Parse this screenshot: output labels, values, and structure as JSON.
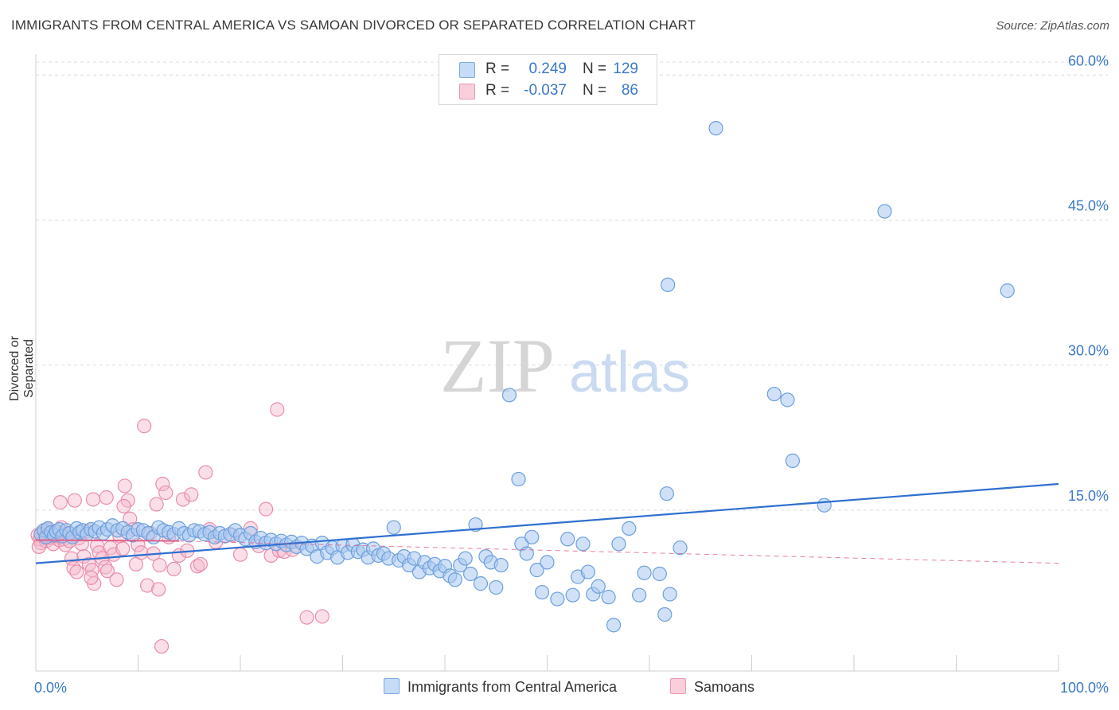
{
  "title": "IMMIGRANTS FROM CENTRAL AMERICA VS SAMOAN DIVORCED OR SEPARATED CORRELATION CHART",
  "source": "Source: ZipAtlas.com",
  "watermark": {
    "zip": "ZIP",
    "atlas": "atlas"
  },
  "legend": {
    "r_label": "R =",
    "n_label": "N =",
    "rows": [
      {
        "r": "0.249",
        "n": "129",
        "color": "#a9c8f0"
      },
      {
        "r": "-0.037",
        "n": "86",
        "color": "#f5b9cc"
      }
    ]
  },
  "bottom_legend": [
    {
      "label": "Immigrants from Central America",
      "color": "#a9c8f0"
    },
    {
      "label": "Samoans",
      "color": "#f5b9cc"
    }
  ],
  "colors": {
    "blue_line": "#2f6fd0",
    "pink_line": "#e0608a",
    "axis_text": "#3a78c8",
    "grid": "#dcdcdc"
  },
  "chart_data": {
    "type": "scatter",
    "ylabel": "Divorced or Separated",
    "xlim": [
      0,
      100
    ],
    "ylim": [
      0,
      62
    ],
    "y_ticks": [
      {
        "v": 15,
        "label": "15.0%"
      },
      {
        "v": 30,
        "label": "30.0%"
      },
      {
        "v": 45,
        "label": "45.0%"
      },
      {
        "v": 60,
        "label": "60.0%"
      }
    ],
    "x_tick_labels": [
      {
        "v": 0,
        "label": "0.0%"
      },
      {
        "v": 100,
        "label": "100.0%"
      }
    ],
    "x_minor_ticks": [
      0,
      10,
      20,
      30,
      40,
      50,
      60,
      70,
      80,
      90,
      100
    ],
    "series": [
      {
        "name": "Immigrants from Central America",
        "color": "#a9c8f0",
        "trend": {
          "x": [
            0,
            100
          ],
          "y": [
            9.5,
            17.7
          ]
        },
        "points": [
          [
            0.5,
            12.5
          ],
          [
            0.8,
            12.9
          ],
          [
            1.0,
            12.2
          ],
          [
            1.2,
            13.1
          ],
          [
            1.5,
            12.7
          ],
          [
            1.8,
            12.4
          ],
          [
            2.0,
            12.8
          ],
          [
            2.3,
            13.0
          ],
          [
            2.6,
            12.3
          ],
          [
            3.0,
            12.9
          ],
          [
            3.3,
            12.6
          ],
          [
            3.6,
            12.2
          ],
          [
            4.0,
            13.1
          ],
          [
            4.3,
            12.7
          ],
          [
            4.6,
            12.9
          ],
          [
            5.0,
            12.5
          ],
          [
            5.4,
            13.0
          ],
          [
            5.8,
            12.8
          ],
          [
            6.2,
            13.2
          ],
          [
            6.6,
            12.6
          ],
          [
            7.0,
            13.0
          ],
          [
            7.5,
            13.4
          ],
          [
            8.0,
            12.9
          ],
          [
            8.5,
            13.1
          ],
          [
            9.0,
            12.7
          ],
          [
            9.5,
            12.4
          ],
          [
            10.0,
            13.0
          ],
          [
            10.5,
            12.9
          ],
          [
            11.0,
            12.6
          ],
          [
            11.5,
            12.2
          ],
          [
            12.0,
            13.2
          ],
          [
            12.5,
            12.9
          ],
          [
            13.0,
            12.7
          ],
          [
            13.5,
            12.5
          ],
          [
            14.0,
            13.1
          ],
          [
            14.5,
            12.6
          ],
          [
            15.0,
            12.4
          ],
          [
            15.5,
            12.9
          ],
          [
            16.0,
            12.8
          ],
          [
            16.5,
            12.5
          ],
          [
            17.0,
            12.7
          ],
          [
            17.5,
            12.2
          ],
          [
            18.0,
            12.6
          ],
          [
            18.5,
            12.3
          ],
          [
            19.0,
            12.5
          ],
          [
            19.5,
            12.9
          ],
          [
            20.0,
            12.4
          ],
          [
            20.5,
            12.0
          ],
          [
            21.0,
            12.6
          ],
          [
            21.5,
            11.7
          ],
          [
            22.0,
            12.1
          ],
          [
            22.5,
            11.6
          ],
          [
            23.0,
            11.9
          ],
          [
            23.5,
            11.5
          ],
          [
            24.0,
            11.8
          ],
          [
            24.5,
            11.4
          ],
          [
            25.0,
            11.7
          ],
          [
            25.5,
            11.2
          ],
          [
            26.0,
            11.6
          ],
          [
            26.5,
            11.0
          ],
          [
            27.0,
            11.3
          ],
          [
            27.5,
            10.2
          ],
          [
            28.0,
            11.6
          ],
          [
            28.5,
            10.6
          ],
          [
            29.0,
            11.1
          ],
          [
            29.5,
            10.1
          ],
          [
            30.0,
            11.3
          ],
          [
            30.5,
            10.6
          ],
          [
            31.0,
            11.4
          ],
          [
            31.5,
            10.7
          ],
          [
            32.0,
            10.9
          ],
          [
            32.5,
            10.1
          ],
          [
            33.0,
            11.0
          ],
          [
            33.5,
            10.3
          ],
          [
            34.0,
            10.5
          ],
          [
            34.5,
            10.0
          ],
          [
            35.0,
            13.2
          ],
          [
            35.5,
            9.8
          ],
          [
            36.0,
            10.2
          ],
          [
            36.5,
            9.3
          ],
          [
            37.0,
            10.0
          ],
          [
            37.5,
            8.6
          ],
          [
            38.0,
            9.6
          ],
          [
            38.5,
            9.0
          ],
          [
            39.0,
            9.4
          ],
          [
            39.5,
            8.7
          ],
          [
            40.0,
            9.2
          ],
          [
            40.5,
            8.2
          ],
          [
            41.0,
            7.8
          ],
          [
            41.5,
            9.3
          ],
          [
            42.0,
            10.0
          ],
          [
            42.5,
            8.4
          ],
          [
            43.0,
            13.5
          ],
          [
            43.5,
            7.4
          ],
          [
            44.0,
            10.2
          ],
          [
            44.5,
            9.6
          ],
          [
            45.0,
            7.0
          ],
          [
            45.5,
            9.3
          ],
          [
            47.5,
            11.5
          ],
          [
            48.0,
            10.5
          ],
          [
            48.5,
            12.2
          ],
          [
            49.0,
            8.8
          ],
          [
            49.5,
            6.5
          ],
          [
            50.0,
            9.6
          ],
          [
            51.0,
            5.8
          ],
          [
            52.0,
            12.0
          ],
          [
            52.5,
            6.2
          ],
          [
            53.0,
            8.1
          ],
          [
            53.5,
            11.5
          ],
          [
            54.0,
            8.6
          ],
          [
            54.5,
            6.3
          ],
          [
            55.0,
            7.1
          ],
          [
            56.0,
            6.0
          ],
          [
            56.5,
            3.1
          ],
          [
            58.0,
            13.1
          ],
          [
            57.0,
            11.5
          ],
          [
            59.0,
            6.2
          ],
          [
            59.5,
            8.5
          ],
          [
            61.0,
            8.4
          ],
          [
            61.5,
            4.2
          ],
          [
            62.0,
            6.3
          ],
          [
            63.0,
            11.1
          ],
          [
            47.2,
            18.2
          ],
          [
            61.7,
            16.7
          ],
          [
            46.3,
            26.9
          ],
          [
            72.2,
            27.0
          ],
          [
            73.5,
            26.4
          ],
          [
            74.0,
            20.1
          ],
          [
            77.1,
            15.5
          ],
          [
            61.8,
            38.3
          ],
          [
            66.5,
            54.5
          ],
          [
            83.0,
            45.9
          ],
          [
            95.0,
            37.7
          ]
        ]
      },
      {
        "name": "Samoans",
        "color": "#f5b9cc",
        "trend": {
          "x": [
            0,
            14
          ],
          "y": [
            11.9,
            11.8
          ],
          "dash_x": [
            14,
            100
          ],
          "dash_y": [
            11.8,
            9.5
          ]
        },
        "points": [
          [
            0.2,
            12.4
          ],
          [
            0.4,
            12.0
          ],
          [
            0.5,
            11.6
          ],
          [
            0.7,
            12.8
          ],
          [
            0.9,
            12.2
          ],
          [
            1.0,
            11.8
          ],
          [
            1.1,
            13.0
          ],
          [
            1.3,
            12.5
          ],
          [
            1.5,
            12.1
          ],
          [
            1.7,
            11.5
          ],
          [
            1.9,
            12.7
          ],
          [
            2.1,
            12.3
          ],
          [
            2.3,
            11.9
          ],
          [
            2.5,
            13.2
          ],
          [
            2.7,
            12.0
          ],
          [
            2.9,
            11.4
          ],
          [
            3.1,
            12.6
          ],
          [
            3.3,
            11.8
          ],
          [
            3.5,
            10.0
          ],
          [
            3.7,
            9.0
          ],
          [
            4.0,
            8.6
          ],
          [
            4.2,
            12.1
          ],
          [
            4.5,
            11.5
          ],
          [
            4.7,
            10.2
          ],
          [
            5.0,
            12.8
          ],
          [
            5.2,
            9.4
          ],
          [
            5.5,
            8.8
          ],
          [
            5.7,
            7.4
          ],
          [
            6.0,
            11.3
          ],
          [
            6.2,
            10.6
          ],
          [
            6.5,
            10.0
          ],
          [
            6.8,
            9.1
          ],
          [
            7.0,
            8.7
          ],
          [
            7.3,
            11.1
          ],
          [
            7.6,
            10.4
          ],
          [
            7.9,
            7.8
          ],
          [
            8.2,
            12.3
          ],
          [
            8.5,
            11.0
          ],
          [
            8.7,
            17.5
          ],
          [
            9.0,
            16.0
          ],
          [
            9.2,
            14.1
          ],
          [
            9.5,
            13.0
          ],
          [
            9.8,
            9.4
          ],
          [
            10.0,
            11.4
          ],
          [
            10.3,
            10.6
          ],
          [
            10.6,
            23.7
          ],
          [
            10.9,
            7.2
          ],
          [
            11.2,
            12.6
          ],
          [
            11.5,
            10.5
          ],
          [
            11.8,
            15.6
          ],
          [
            12.1,
            9.3
          ],
          [
            12.4,
            17.7
          ],
          [
            12.7,
            16.8
          ],
          [
            13.0,
            12.2
          ],
          [
            13.5,
            8.9
          ],
          [
            14.0,
            10.3
          ],
          [
            14.4,
            16.1
          ],
          [
            14.8,
            10.8
          ],
          [
            15.2,
            16.6
          ],
          [
            15.8,
            9.2
          ],
          [
            12.0,
            6.8
          ],
          [
            5.4,
            8.0
          ],
          [
            2.4,
            15.8
          ],
          [
            3.8,
            16.0
          ],
          [
            5.6,
            16.1
          ],
          [
            6.9,
            16.3
          ],
          [
            8.6,
            15.4
          ],
          [
            12.3,
            0.9
          ],
          [
            16.1,
            9.4
          ],
          [
            16.6,
            18.9
          ],
          [
            17.0,
            13.0
          ],
          [
            17.6,
            11.7
          ],
          [
            19.2,
            12.4
          ],
          [
            20.0,
            10.4
          ],
          [
            21.0,
            13.1
          ],
          [
            21.8,
            11.3
          ],
          [
            22.5,
            15.1
          ],
          [
            23.0,
            10.3
          ],
          [
            23.8,
            10.8
          ],
          [
            23.6,
            25.4
          ],
          [
            24.3,
            10.7
          ],
          [
            25.1,
            10.9
          ],
          [
            26.5,
            3.9
          ],
          [
            28.0,
            4.0
          ],
          [
            0.3,
            11.2
          ],
          [
            1.6,
            12.3
          ]
        ]
      }
    ]
  }
}
